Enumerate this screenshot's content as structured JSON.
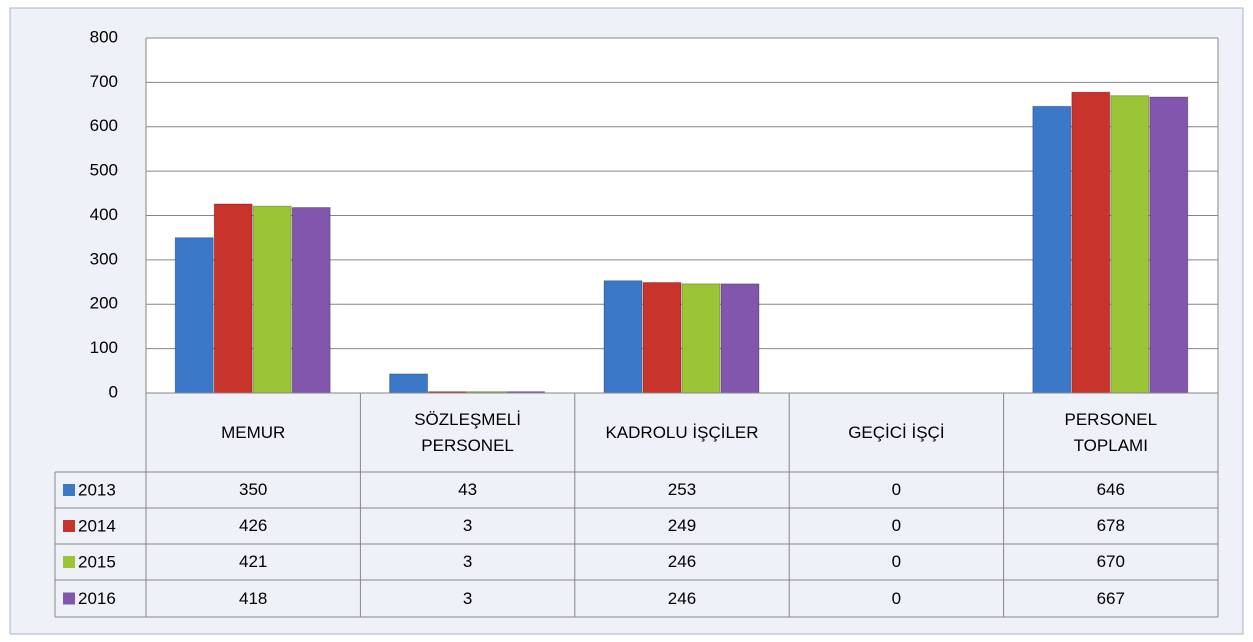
{
  "chart_data": {
    "type": "bar",
    "categories": [
      "MEMUR",
      "SÖZLEŞMELİ\nPERSONEL",
      "KADROLU İŞÇİLER",
      "GEÇİCİ İŞÇİ",
      "PERSONEL\nTOPLAMI"
    ],
    "series": [
      {
        "name": "2013",
        "color": "#3b78c8",
        "values": [
          350,
          43,
          253,
          0,
          646
        ]
      },
      {
        "name": "2014",
        "color": "#c8332c",
        "values": [
          426,
          3,
          249,
          0,
          678
        ]
      },
      {
        "name": "2015",
        "color": "#9cc437",
        "values": [
          421,
          3,
          246,
          0,
          670
        ]
      },
      {
        "name": "2016",
        "color": "#8156ac",
        "values": [
          418,
          3,
          246,
          0,
          667
        ]
      }
    ],
    "ylim": [
      0,
      800
    ],
    "yticks": [
      0,
      100,
      200,
      300,
      400,
      500,
      600,
      700,
      800
    ],
    "grid": true,
    "data_table": true
  }
}
